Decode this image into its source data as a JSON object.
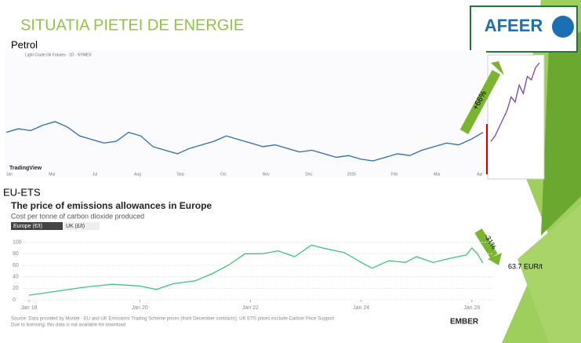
{
  "slide": {
    "title": "SITUATIA PIETEI DE ENERGIE",
    "logo": "AFEER"
  },
  "petrol": {
    "label": "Petrol",
    "header": "Light Crude Oil Futures · 1D · NYMEX",
    "watermark": "TradingView",
    "x_labels": [
      "Jan",
      "Mar",
      "Jul",
      "Aug",
      "Sep",
      "Oct",
      "Nov",
      "Dec",
      "2026",
      "Feb",
      "Mar",
      "Apr"
    ],
    "values": [
      72,
      74,
      73,
      76,
      78,
      75,
      70,
      68,
      66,
      67,
      72,
      70,
      64,
      62,
      60,
      63,
      65,
      67,
      70,
      68,
      66,
      64,
      65,
      63,
      61,
      62,
      60,
      58,
      59,
      57,
      56,
      58,
      60,
      59,
      62,
      64,
      66,
      65,
      68,
      72
    ],
    "inset_values": [
      72,
      75,
      80,
      85,
      90,
      98,
      95,
      105,
      100,
      110,
      108,
      115,
      118
    ],
    "annotation": "+66%"
  },
  "ets": {
    "label": "EU-ETS",
    "title": "The price of emissions allowances in Europe",
    "subtitle": "Cost per tonne of carbon dioxide produced",
    "tabs": [
      "Europe (€/t)",
      "UK (£/t)"
    ],
    "x": [
      2018.0,
      2018.5,
      2019.0,
      2019.5,
      2020.0,
      2020.3,
      2020.6,
      2021.0,
      2021.3,
      2021.6,
      2021.9,
      2022.2,
      2022.5,
      2022.8,
      2023.1,
      2023.4,
      2023.7,
      2024.0,
      2024.2,
      2024.5,
      2024.8,
      2025.0,
      2025.3,
      2025.6,
      2025.9,
      2026.0,
      2026.1,
      2026.2
    ],
    "values": [
      8,
      15,
      22,
      27,
      24,
      18,
      28,
      33,
      45,
      60,
      80,
      80,
      85,
      75,
      95,
      88,
      82,
      65,
      55,
      68,
      65,
      75,
      65,
      72,
      78,
      90,
      80,
      64
    ],
    "xlim": [
      2017.9,
      2026.4
    ],
    "ylim": [
      0,
      105
    ],
    "yticks": [
      0,
      20,
      40,
      60,
      80,
      100
    ],
    "xticks": [
      {
        "value": 2018,
        "label": "Jan 18"
      },
      {
        "value": 2020,
        "label": "Jan 20"
      },
      {
        "value": 2022,
        "label": "Jan 22"
      },
      {
        "value": 2024,
        "label": "Jan 24"
      },
      {
        "value": 2026,
        "label": "Jan 26"
      }
    ],
    "annotation": "-31%",
    "price_label": "63.7 EUR/t",
    "source": "Source: Data provided by Montel - EU and UK Emissions Trading Scheme prices (front December contracts); UK ETS prices exclude Carbon Price Support",
    "note": "Due to licensing, this data is not available for download",
    "brand": "EMBER"
  }
}
